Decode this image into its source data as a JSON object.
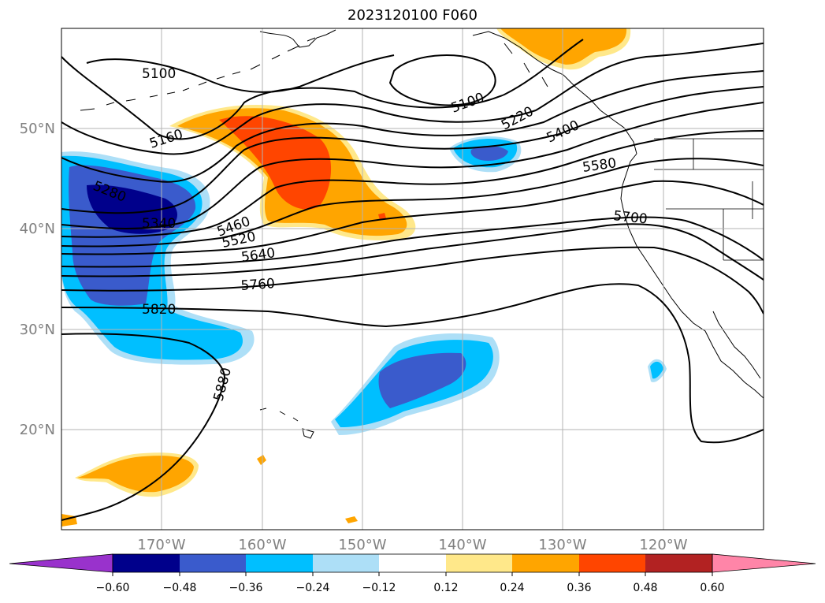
{
  "map": {
    "title": "2023120100 F060",
    "latitude_labels": [
      "50°N",
      "40°N",
      "30°N",
      "20°N"
    ],
    "longitude_labels": [
      "170°W",
      "160°W",
      "150°W",
      "140°W",
      "130°W",
      "120°W"
    ],
    "contour_labels": [
      "5100",
      "5100",
      "5160",
      "5220",
      "5280",
      "5340",
      "5400",
      "5460",
      "5520",
      "5580",
      "5640",
      "5700",
      "5760",
      "5820",
      "5880"
    ],
    "colorbar": {
      "ticks": [
        "−0.60",
        "−0.48",
        "−0.36",
        "−0.24",
        "−0.12",
        "0.12",
        "0.24",
        "0.36",
        "0.48",
        "0.60"
      ],
      "colors": [
        "#9932CC",
        "#00008B",
        "#3A5BCC",
        "#00BFFF",
        "#ADDFF7",
        "#FFFFFF",
        "#FFE88A",
        "#FFA500",
        "#FF4500",
        "#B22222",
        "#FF85A8"
      ]
    }
  }
}
